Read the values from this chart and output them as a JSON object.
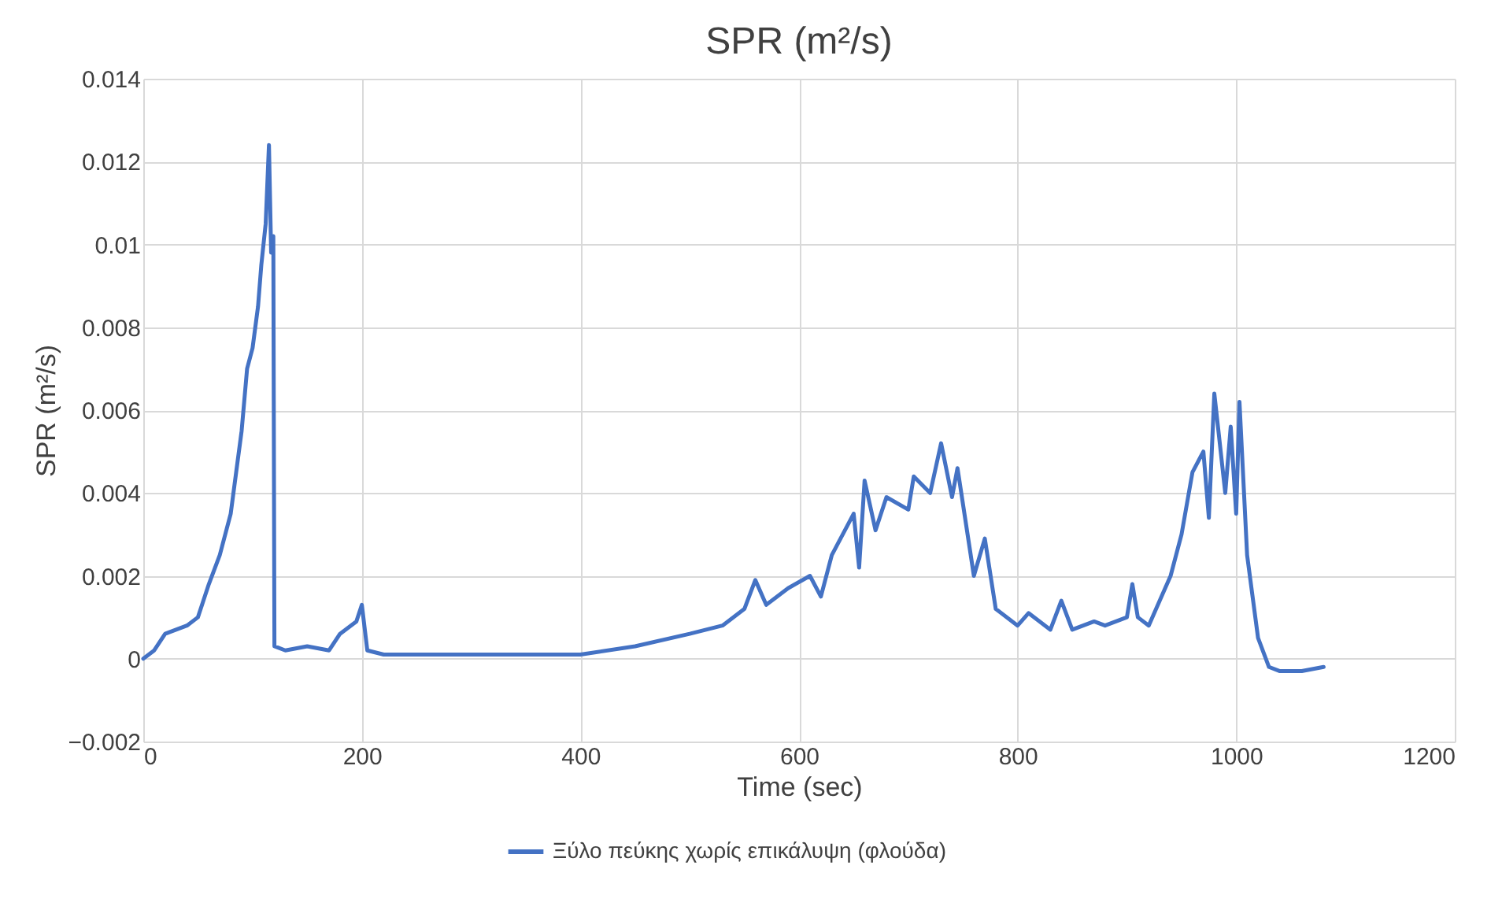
{
  "chart_data": {
    "type": "line",
    "title": "SPR (m²/s)",
    "xlabel": "Time (sec)",
    "ylabel": "SPR (m²/s)",
    "xlim": [
      0,
      1200
    ],
    "xticks": [
      0,
      200,
      400,
      600,
      800,
      1000,
      1200
    ],
    "ylim": [
      -0.002,
      0.014
    ],
    "yticks": [
      -0.002,
      0,
      0.002,
      0.004,
      0.006,
      0.008,
      0.01,
      0.012,
      0.014
    ],
    "grid": true,
    "legend": "bottom",
    "marker": "none",
    "line_style": "solid",
    "series": [
      {
        "name": "Ξύλο πεύκης  χωρίς επικάλυψη (φλούδα)",
        "color": "#4472c4",
        "x": [
          0,
          10,
          20,
          40,
          50,
          60,
          70,
          80,
          85,
          90,
          95,
          100,
          105,
          108,
          112,
          115,
          117,
          119,
          120,
          130,
          150,
          170,
          180,
          195,
          200,
          205,
          220,
          300,
          350,
          400,
          450,
          500,
          530,
          550,
          560,
          570,
          590,
          610,
          620,
          630,
          650,
          655,
          660,
          670,
          680,
          700,
          705,
          720,
          730,
          740,
          745,
          760,
          770,
          780,
          800,
          810,
          830,
          840,
          850,
          870,
          880,
          900,
          905,
          910,
          920,
          940,
          950,
          960,
          970,
          975,
          980,
          990,
          995,
          1000,
          1003,
          1010,
          1020,
          1030,
          1040,
          1060,
          1080
        ],
        "values": [
          0,
          0.0002,
          0.0006,
          0.0008,
          0.001,
          0.0018,
          0.0025,
          0.0035,
          0.0045,
          0.0055,
          0.007,
          0.0075,
          0.0085,
          0.0095,
          0.0105,
          0.0124,
          0.0098,
          0.0102,
          0.0003,
          0.0002,
          0.0003,
          0.0002,
          0.0006,
          0.0009,
          0.0013,
          0.0002,
          0.0001,
          0.0001,
          0.0001,
          0.0001,
          0.0003,
          0.0006,
          0.0008,
          0.0012,
          0.0019,
          0.0013,
          0.0017,
          0.002,
          0.0015,
          0.0025,
          0.0035,
          0.0022,
          0.0043,
          0.0031,
          0.0039,
          0.0036,
          0.0044,
          0.004,
          0.0052,
          0.0039,
          0.0046,
          0.002,
          0.0029,
          0.0012,
          0.0008,
          0.0011,
          0.0007,
          0.0014,
          0.0007,
          0.0009,
          0.0008,
          0.001,
          0.0018,
          0.001,
          0.0008,
          0.002,
          0.003,
          0.0045,
          0.005,
          0.0034,
          0.0064,
          0.004,
          0.0056,
          0.0035,
          0.0062,
          0.0025,
          0.0005,
          -0.0002,
          -0.0003,
          -0.0003,
          -0.0002
        ]
      }
    ]
  }
}
